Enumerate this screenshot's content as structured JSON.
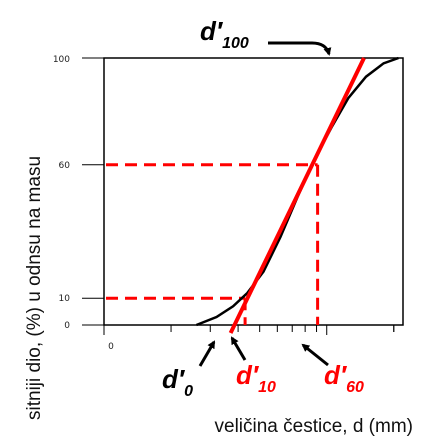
{
  "chart_data": {
    "type": "line",
    "title": "",
    "xlabel": "veličina čestice, d (mm)",
    "ylabel": "sitniji dio, (%) u odnsu na masu",
    "x_scale": "log",
    "x_tick_label": "0",
    "yticks": [
      0,
      10,
      60,
      100
    ],
    "ylim": [
      0,
      100
    ],
    "grid": false,
    "series": [
      {
        "color": "#000000",
        "points": [
          {
            "x": 0.26,
            "y": 0
          },
          {
            "x": 0.32,
            "y": 3
          },
          {
            "x": 0.38,
            "y": 7
          },
          {
            "x": 0.44,
            "y": 12
          },
          {
            "x": 0.52,
            "y": 20
          },
          {
            "x": 0.62,
            "y": 33
          },
          {
            "x": 0.74,
            "y": 48
          },
          {
            "x": 0.88,
            "y": 62
          },
          {
            "x": 1.05,
            "y": 74
          },
          {
            "x": 1.25,
            "y": 85
          },
          {
            "x": 1.5,
            "y": 93
          },
          {
            "x": 1.8,
            "y": 98
          },
          {
            "x": 2.1,
            "y": 100
          }
        ]
      },
      {
        "color": "#ff0000",
        "points": [
          {
            "x": 0.37,
            "y": -3
          },
          {
            "x": 1.47,
            "y": 100
          }
        ]
      }
    ],
    "reference_lines": [
      {
        "y": 60,
        "x": 0.91,
        "color": "#ff0000",
        "style": "dashed"
      },
      {
        "y": 10,
        "x": 0.43,
        "color": "#ff0000",
        "style": "dashed"
      }
    ],
    "annotations": [
      {
        "base": "d",
        "sub": "100",
        "color": "#000000"
      },
      {
        "base": "d",
        "sub": "0",
        "color": "#000000"
      },
      {
        "base": "d",
        "sub": "10",
        "color": "#ff0000"
      },
      {
        "base": "d",
        "sub": "60",
        "color": "#ff0000"
      }
    ]
  }
}
